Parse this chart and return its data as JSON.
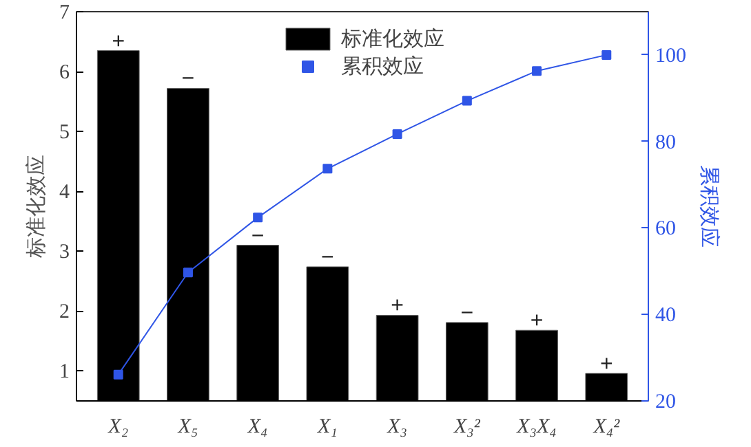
{
  "chart_data": {
    "type": "bar",
    "categories": [
      "X₂",
      "X₅",
      "X₄",
      "X₁",
      "X₃",
      "X₃²",
      "X₃X₄",
      "X₄²"
    ],
    "ylabel": "标准化效应",
    "y2label": "累积效应",
    "series": [
      {
        "name": "标准化效应",
        "color": "#000000",
        "values": [
          6.35,
          5.72,
          3.1,
          2.74,
          1.93,
          1.81,
          1.68,
          0.96
        ]
      },
      {
        "name": "累积效应",
        "type": "line",
        "axis": "y2",
        "color": "#2f55e6",
        "marker": "square",
        "values": [
          26.1,
          49.7,
          62.4,
          73.7,
          81.7,
          89.4,
          96.3,
          100
        ]
      }
    ],
    "ylim": [
      0.5,
      7
    ],
    "yticks": [
      1,
      2,
      3,
      4,
      5,
      6,
      7
    ],
    "y2lim": [
      20,
      110
    ],
    "y2ticks": [
      20,
      40,
      60,
      80,
      100
    ],
    "annotations": [
      {
        "text": "+",
        "x": "X₂",
        "y": 6.35
      },
      {
        "text": "−",
        "x": "X₅",
        "y": 5.72
      },
      {
        "text": "−",
        "x": "X₄",
        "y": 3.1
      },
      {
        "text": "−",
        "x": "X₁",
        "y": 2.74
      },
      {
        "text": "+",
        "x": "X₃",
        "y": 1.93
      },
      {
        "text": "−",
        "x": "X₃²",
        "y": 1.81
      },
      {
        "text": "+",
        "x": "X₃X₄",
        "y": 1.68
      },
      {
        "text": "+",
        "x": "X₄²",
        "y": 0.96
      }
    ],
    "legend": "top",
    "grid": false
  }
}
